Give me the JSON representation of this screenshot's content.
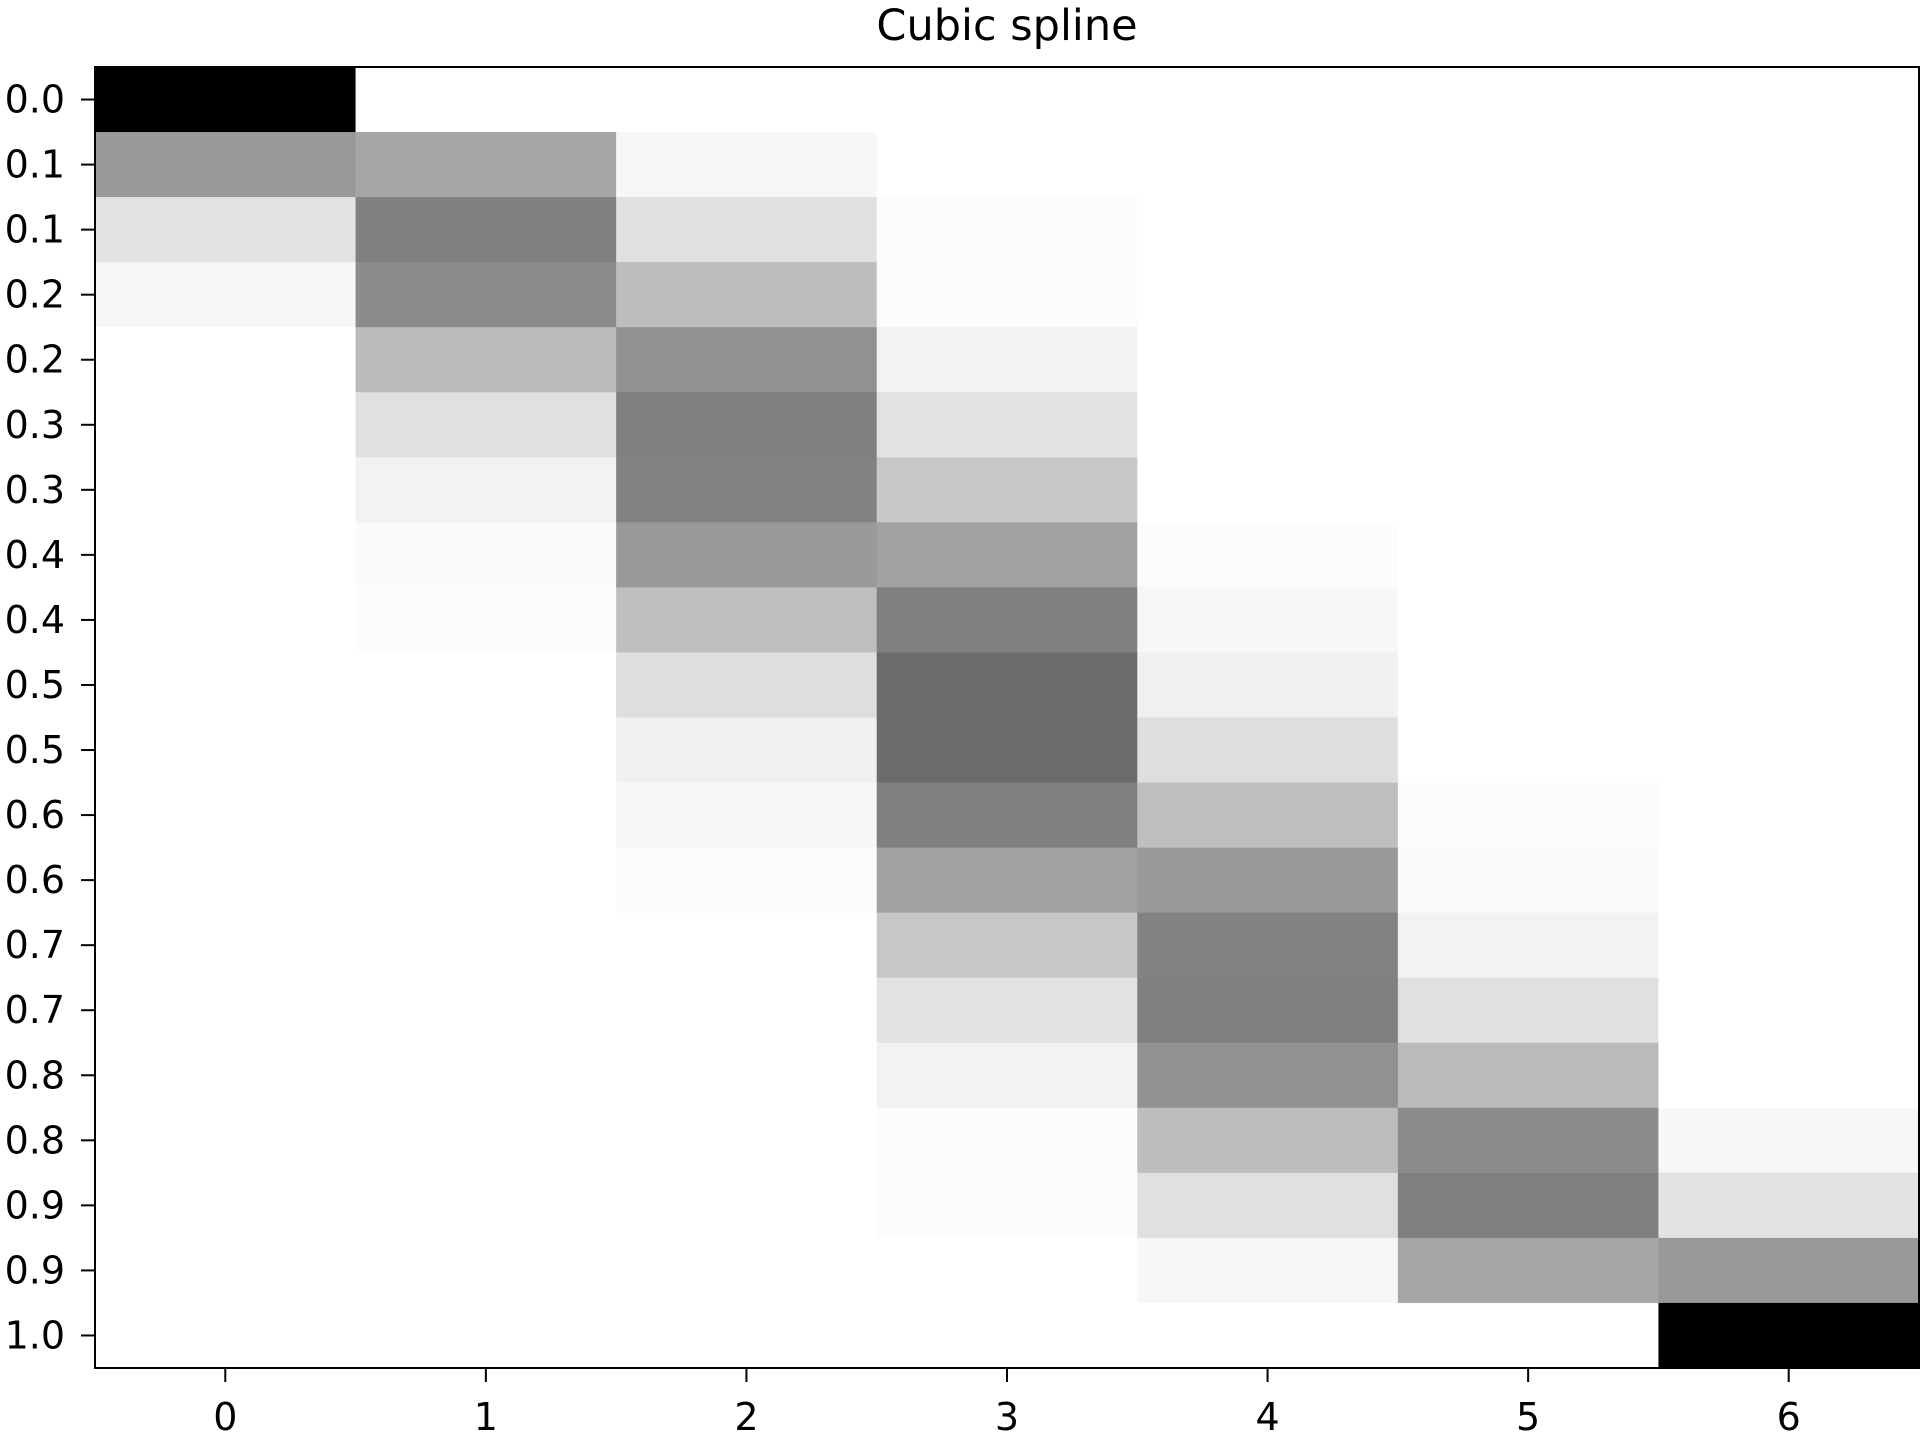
{
  "chart_data": {
    "type": "heatmap",
    "title": "Cubic spline",
    "xlabel": "",
    "ylabel": "",
    "colormap": "gray_r",
    "x_tick_labels": [
      "0",
      "1",
      "2",
      "3",
      "4",
      "5",
      "6"
    ],
    "y_tick_labels": [
      "0.0",
      "0.1",
      "0.1",
      "0.2",
      "0.2",
      "0.3",
      "0.3",
      "0.4",
      "0.4",
      "0.5",
      "0.5",
      "0.6",
      "0.6",
      "0.7",
      "0.7",
      "0.8",
      "0.8",
      "0.9",
      "0.9",
      "1.0"
    ],
    "vmin": 0,
    "vmax": 1,
    "grid": false,
    "legend": "none",
    "values": [
      [
        1.0,
        0.0,
        0.0,
        0.0,
        0.0,
        0.0,
        0.0
      ],
      [
        0.4,
        0.35,
        0.03,
        0.0,
        0.0,
        0.0,
        0.0
      ],
      [
        0.11,
        0.5,
        0.12,
        0.01,
        0.0,
        0.0,
        0.0
      ],
      [
        0.03,
        0.45,
        0.26,
        0.01,
        0.0,
        0.0,
        0.0
      ],
      [
        0.0,
        0.27,
        0.43,
        0.05,
        0.0,
        0.0,
        0.0
      ],
      [
        0.0,
        0.12,
        0.5,
        0.11,
        0.0,
        0.0,
        0.0
      ],
      [
        0.0,
        0.05,
        0.49,
        0.22,
        0.0,
        0.0,
        0.0
      ],
      [
        0.0,
        0.02,
        0.4,
        0.37,
        0.01,
        0.0,
        0.0
      ],
      [
        0.0,
        0.01,
        0.25,
        0.5,
        0.03,
        0.0,
        0.0
      ],
      [
        0.0,
        0.0,
        0.13,
        0.58,
        0.06,
        0.0,
        0.0
      ],
      [
        0.0,
        0.0,
        0.06,
        0.58,
        0.13,
        0.0,
        0.0
      ],
      [
        0.0,
        0.0,
        0.03,
        0.5,
        0.25,
        0.01,
        0.0
      ],
      [
        0.0,
        0.0,
        0.01,
        0.37,
        0.4,
        0.02,
        0.0
      ],
      [
        0.0,
        0.0,
        0.0,
        0.22,
        0.49,
        0.05,
        0.0
      ],
      [
        0.0,
        0.0,
        0.0,
        0.11,
        0.5,
        0.12,
        0.0
      ],
      [
        0.0,
        0.0,
        0.0,
        0.05,
        0.43,
        0.27,
        0.0
      ],
      [
        0.0,
        0.0,
        0.0,
        0.01,
        0.26,
        0.45,
        0.03
      ],
      [
        0.0,
        0.0,
        0.0,
        0.01,
        0.12,
        0.5,
        0.11
      ],
      [
        0.0,
        0.0,
        0.0,
        0.0,
        0.03,
        0.35,
        0.4
      ],
      [
        0.0,
        0.0,
        0.0,
        0.0,
        0.0,
        0.0,
        1.0
      ]
    ]
  }
}
